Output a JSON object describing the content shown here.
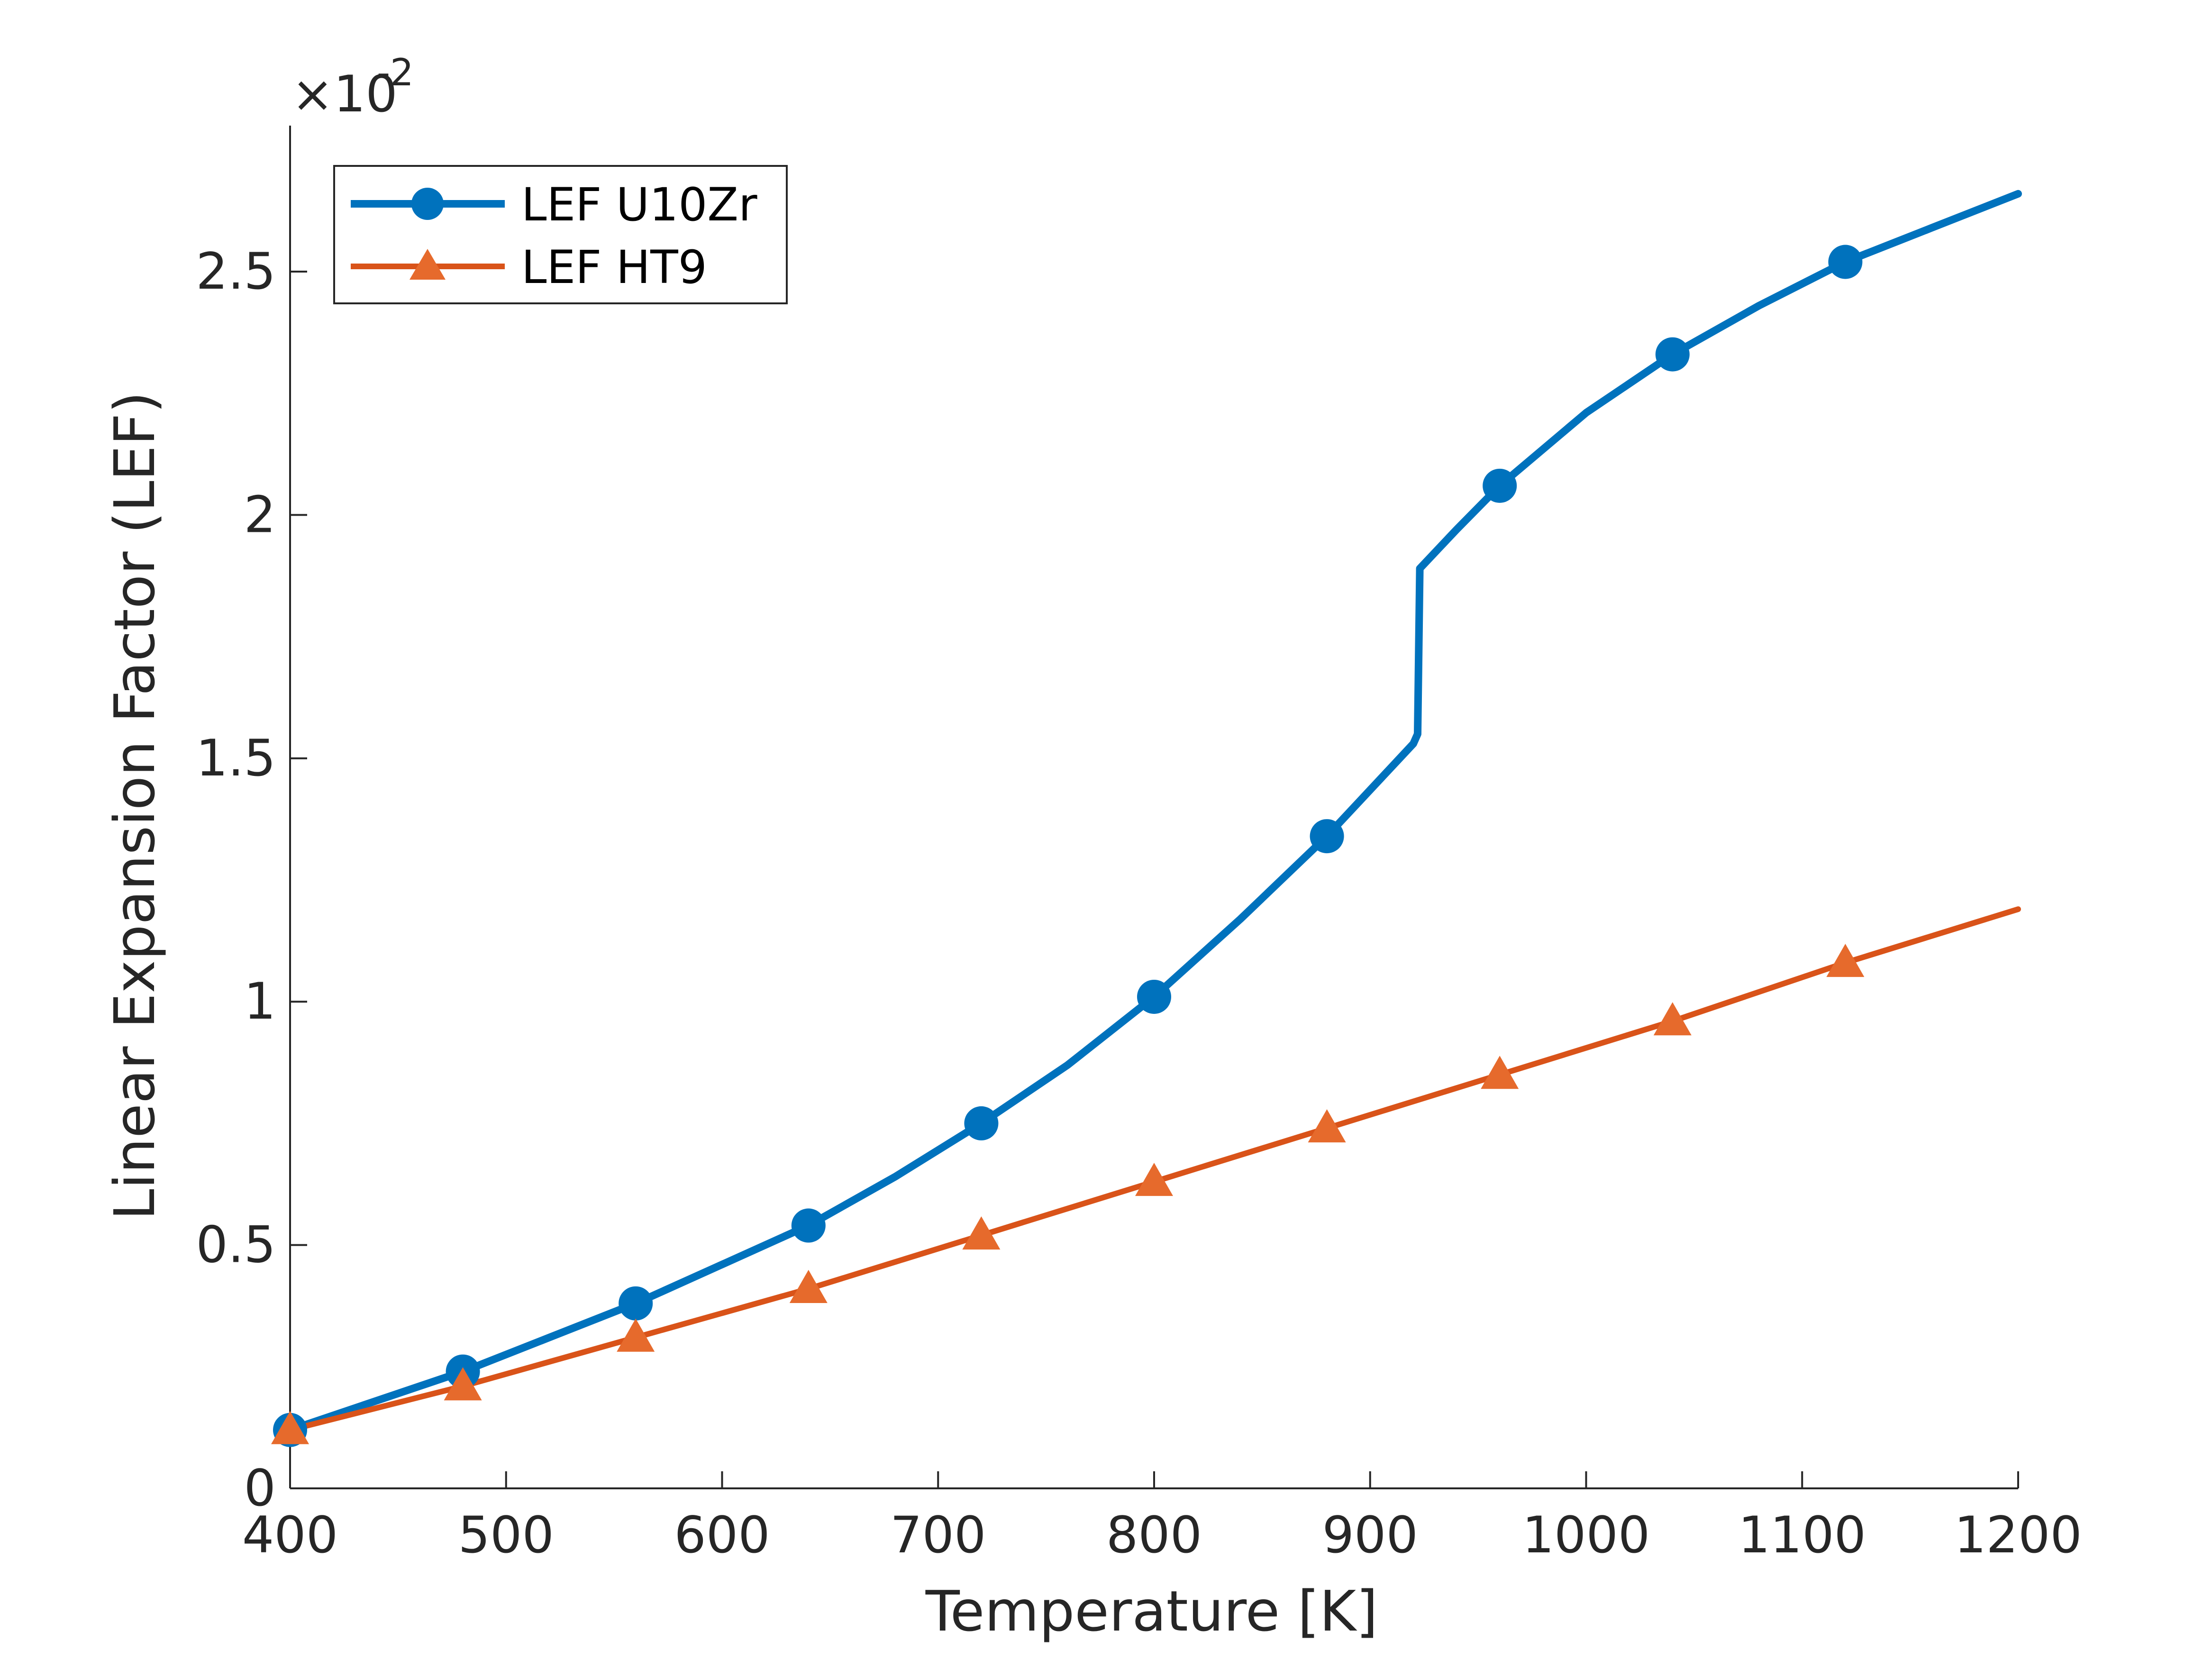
{
  "chart_data": {
    "type": "line",
    "xlabel": "Temperature [K]",
    "ylabel": "Linear Expansion Factor (LEF)",
    "xlim": [
      400,
      1200
    ],
    "ylim": [
      0,
      2.8
    ],
    "y_multiplier": "×10",
    "y_multiplier_exponent": "-2",
    "x_ticks": [
      400,
      500,
      600,
      700,
      800,
      900,
      1000,
      1100,
      1200
    ],
    "x_tick_labels": [
      "400",
      "500",
      "600",
      "700",
      "800",
      "900",
      "1000",
      "1100",
      "1200"
    ],
    "y_ticks": [
      0,
      0.5,
      1,
      1.5,
      2,
      2.5
    ],
    "y_tick_labels": [
      "0",
      "0.5",
      "1",
      "1.5",
      "2",
      "2.5"
    ],
    "grid": false,
    "legend_position": "top-left",
    "series": [
      {
        "name": "LEF U10Zr",
        "color": "#0072BD",
        "marker": "circle",
        "x": [
          400,
          440,
          480,
          520,
          560,
          600,
          640,
          680,
          720,
          760,
          800,
          840,
          880,
          920,
          922,
          923,
          940,
          960,
          1000,
          1040,
          1080,
          1120,
          1160,
          1200
        ],
        "y": [
          0.12,
          0.18,
          0.24,
          0.31,
          0.38,
          0.46,
          0.54,
          0.64,
          0.75,
          0.87,
          1.01,
          1.17,
          1.34,
          1.53,
          1.55,
          1.89,
          1.97,
          2.06,
          2.21,
          2.33,
          2.43,
          2.52,
          2.59,
          2.66
        ],
        "marker_x": [
          400,
          480,
          560,
          640,
          720,
          800,
          880,
          960,
          1040,
          1120
        ]
      },
      {
        "name": "LEF HT9",
        "color": "#D95319",
        "marker": "triangle",
        "x": [
          400,
          480,
          560,
          640,
          720,
          800,
          880,
          960,
          1040,
          1120,
          1200
        ],
        "y": [
          0.12,
          0.21,
          0.31,
          0.41,
          0.52,
          0.63,
          0.74,
          0.85,
          0.96,
          1.08,
          1.19
        ],
        "marker_x": [
          400,
          480,
          560,
          640,
          720,
          800,
          880,
          960,
          1040,
          1120
        ]
      }
    ]
  }
}
